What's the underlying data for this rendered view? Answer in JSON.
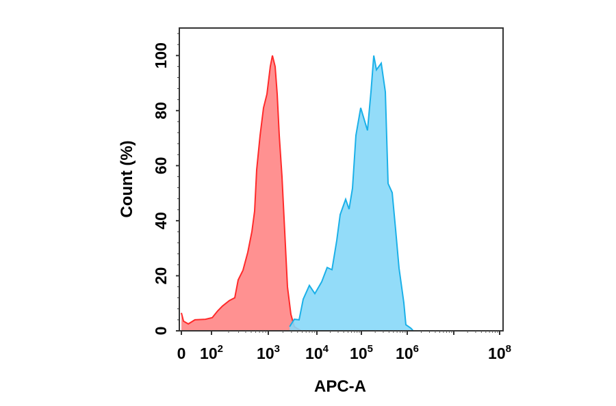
{
  "chart_data": {
    "type": "area",
    "title": "",
    "xlabel": "APC-A",
    "ylabel": "Count (%)",
    "x_scale": "biexponential",
    "ylim": [
      0,
      110
    ],
    "y_ticks": [
      0,
      20,
      40,
      60,
      80,
      100
    ],
    "y_tick_labels": [
      "0",
      "20",
      "40",
      "60",
      "80",
      "100"
    ],
    "x_ticks": [
      {
        "value": 0,
        "base": "0",
        "exp": ""
      },
      {
        "value": 100,
        "base": "10",
        "exp": "2"
      },
      {
        "value": 1000,
        "base": "10",
        "exp": "3"
      },
      {
        "value": 10000,
        "base": "10",
        "exp": "4"
      },
      {
        "value": 100000,
        "base": "10",
        "exp": "5"
      },
      {
        "value": 1000000,
        "base": "10",
        "exp": "6"
      },
      {
        "value": 10000000,
        "base": "",
        "exp": ""
      },
      {
        "value": 100000000,
        "base": "10",
        "exp": "8"
      }
    ],
    "grid": false,
    "legend": "none",
    "series": [
      {
        "color_fill": "#ff8585",
        "color_line": "#ff2a2a",
        "x": [
          0,
          7,
          23,
          45,
          80,
          103,
          128,
          156,
          206,
          257,
          295,
          358,
          435,
          514,
          574,
          624,
          716,
          824,
          946,
          1100,
          1215,
          1385,
          1525,
          1680,
          1913,
          2180,
          2480,
          2915,
          3430,
          4745
        ],
        "y": [
          6.5,
          3.5,
          2.5,
          4,
          4.2,
          4.8,
          7.2,
          9,
          11,
          12,
          18.5,
          22,
          28.5,
          36,
          43.5,
          58.5,
          71,
          81,
          86,
          96,
          100,
          96,
          86,
          71,
          56,
          36,
          16,
          6,
          1.5,
          0
        ]
      },
      {
        "color_fill": "#87d8f8",
        "color_line": "#1ab0e8",
        "x": [
          2740,
          3430,
          4300,
          5230,
          7000,
          9080,
          12800,
          17000,
          21800,
          27900,
          33300,
          44300,
          52800,
          63100,
          75400,
          96600,
          136000,
          162000,
          186000,
          213000,
          271000,
          333000,
          382000,
          470000,
          557000,
          662000,
          842000,
          933000,
          1190000,
          1320000
        ],
        "y": [
          1.5,
          4.2,
          4,
          11.5,
          16.5,
          13.5,
          17.8,
          23,
          22.2,
          32.8,
          42.2,
          47.8,
          44.2,
          51.8,
          71,
          81,
          72.8,
          86.8,
          100,
          94.8,
          97.2,
          86.8,
          53.5,
          50.2,
          36.8,
          22.8,
          10.2,
          2.2,
          1,
          0.2
        ]
      }
    ]
  }
}
